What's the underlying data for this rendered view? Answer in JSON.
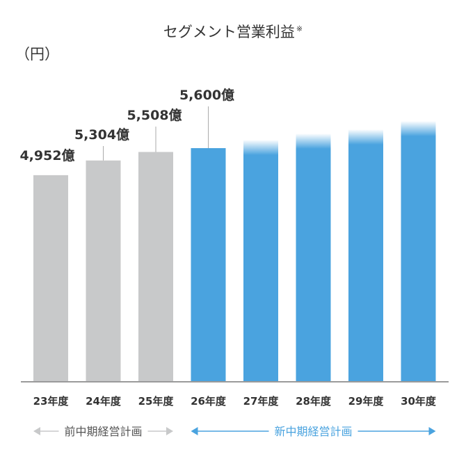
{
  "chart_data": {
    "type": "bar",
    "title": "セグメント営業利益",
    "title_note": "※",
    "unit_label": "（円）",
    "categories": [
      "23年度",
      "24年度",
      "25年度",
      "26年度",
      "27年度",
      "28年度",
      "29年度",
      "30年度"
    ],
    "values": [
      4952,
      5304,
      5508,
      5600,
      5800,
      5950,
      6050,
      6250
    ],
    "value_labels": [
      "4,952億",
      "5,304億",
      "5,508億",
      "5,600億",
      "",
      "",
      "",
      ""
    ],
    "colors": [
      "#c8c9ca",
      "#c8c9ca",
      "#c8c9ca",
      "#4aa3df",
      "#4aa3df",
      "#4aa3df",
      "#4aa3df",
      "#4aa3df"
    ],
    "faded_top": [
      false,
      false,
      false,
      false,
      true,
      true,
      true,
      true
    ],
    "ylim": [
      0,
      6450
    ],
    "plans": [
      {
        "label": "前中期経営計画",
        "from": 0,
        "to": 2,
        "color": "#c8c9ca"
      },
      {
        "label": "新中期経営計画",
        "from": 3,
        "to": 7,
        "color": "#4aa3df"
      }
    ]
  }
}
